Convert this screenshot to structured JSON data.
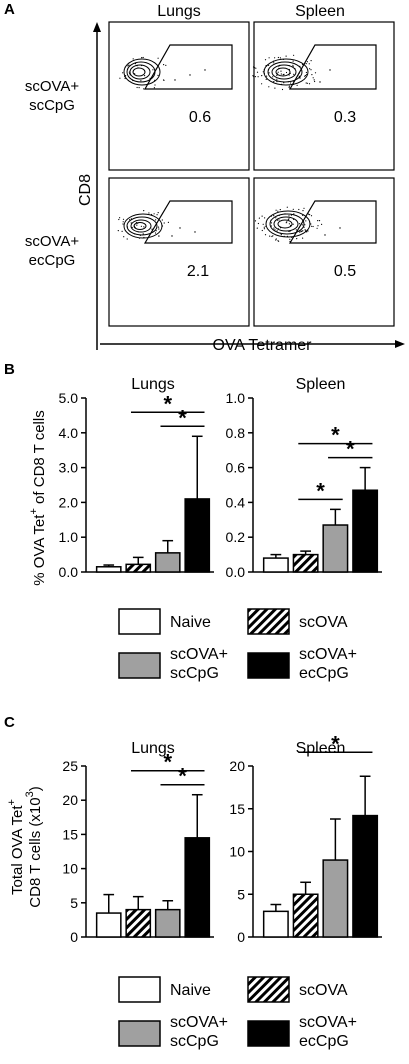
{
  "colors": {
    "naive": "#ffffff",
    "scova": "hatched",
    "scova_sccpg": "#a0a0a0",
    "scova_eccpg": "#000000"
  },
  "panel_a": {
    "letter": "A",
    "col_titles": [
      "Lungs",
      "Spleen"
    ],
    "row_labels": [
      [
        "scOVA+",
        "scCpG"
      ],
      [
        "scOVA+",
        "ecCpG"
      ]
    ],
    "y_axis_label": "CD8",
    "x_axis_label": "OVA Tetramer",
    "gate_values": [
      [
        "0.6",
        "0.3"
      ],
      [
        "2.1",
        "0.5"
      ]
    ]
  },
  "panel_b": {
    "letter": "B",
    "ylabel": "% OVA Tet+ of CD8 T cells",
    "legend": [
      {
        "label_lines": [
          "Naive"
        ],
        "style": "white"
      },
      {
        "label_lines": [
          "scOVA"
        ],
        "style": "hatched"
      },
      {
        "label_lines": [
          "scOVA+",
          "scCpG"
        ],
        "style": "gray"
      },
      {
        "label_lines": [
          "scOVA+",
          "ecCpG"
        ],
        "style": "black"
      }
    ]
  },
  "panel_c": {
    "letter": "C",
    "ylabel_line1": "Total OVA Tet+",
    "ylabel_line2": "CD8 T cells (x10³)",
    "legend": [
      {
        "label_lines": [
          "Naive"
        ],
        "style": "white"
      },
      {
        "label_lines": [
          "scOVA"
        ],
        "style": "hatched"
      },
      {
        "label_lines": [
          "scOVA+",
          "scCpG"
        ],
        "style": "gray"
      },
      {
        "label_lines": [
          "scOVA+",
          "ecCpG"
        ],
        "style": "black"
      }
    ]
  },
  "chart_data": [
    {
      "panel": "B",
      "type": "bar",
      "title": "Lungs",
      "categories": [
        "Naive",
        "scOVA",
        "scOVA+ scCpG",
        "scOVA+ ecCpG"
      ],
      "values": [
        0.15,
        0.22,
        0.55,
        2.1
      ],
      "errors": [
        0.05,
        0.2,
        0.35,
        1.8
      ],
      "ylim": [
        0,
        5.0
      ],
      "yticks": [
        "0.0",
        "1.0",
        "2.0",
        "3.0",
        "4.0",
        "5.0"
      ],
      "significance": [
        {
          "from": 2,
          "to": 3,
          "label": "*"
        },
        {
          "from": 1,
          "to": 3,
          "label": "*"
        }
      ]
    },
    {
      "panel": "B",
      "type": "bar",
      "title": "Spleen",
      "categories": [
        "Naive",
        "scOVA",
        "scOVA+ scCpG",
        "scOVA+ ecCpG"
      ],
      "values": [
        0.08,
        0.1,
        0.27,
        0.47
      ],
      "errors": [
        0.02,
        0.02,
        0.09,
        0.13
      ],
      "ylim": [
        0,
        1.0
      ],
      "yticks": [
        "0.0",
        "0.2",
        "0.4",
        "0.6",
        "0.8",
        "1.0"
      ],
      "significance": [
        {
          "from": 1,
          "to": 2,
          "label": "*"
        },
        {
          "from": 2,
          "to": 3,
          "label": "*"
        },
        {
          "from": 1,
          "to": 3,
          "label": "*"
        }
      ]
    },
    {
      "panel": "C",
      "type": "bar",
      "title": "Lungs",
      "categories": [
        "Naive",
        "scOVA",
        "scOVA+ scCpG",
        "scOVA+ ecCpG"
      ],
      "values": [
        3.5,
        4.0,
        4.0,
        14.5
      ],
      "errors": [
        2.7,
        1.9,
        1.3,
        6.3
      ],
      "ylim": [
        0,
        25
      ],
      "yticks": [
        "0",
        "5",
        "10",
        "15",
        "20",
        "25"
      ],
      "significance": [
        {
          "from": 2,
          "to": 3,
          "label": "*"
        },
        {
          "from": 1,
          "to": 3,
          "label": "*"
        }
      ]
    },
    {
      "panel": "C",
      "type": "bar",
      "title": "Spleen",
      "categories": [
        "Naive",
        "scOVA",
        "scOVA+ scCpG",
        "scOVA+ ecCpG"
      ],
      "values": [
        3.0,
        5.0,
        9.0,
        14.2
      ],
      "errors": [
        0.8,
        1.4,
        4.8,
        4.6
      ],
      "ylim": [
        0,
        20
      ],
      "yticks": [
        "0",
        "5",
        "10",
        "15",
        "20"
      ],
      "significance": [
        {
          "from": 1,
          "to": 3,
          "label": "*"
        }
      ]
    }
  ]
}
